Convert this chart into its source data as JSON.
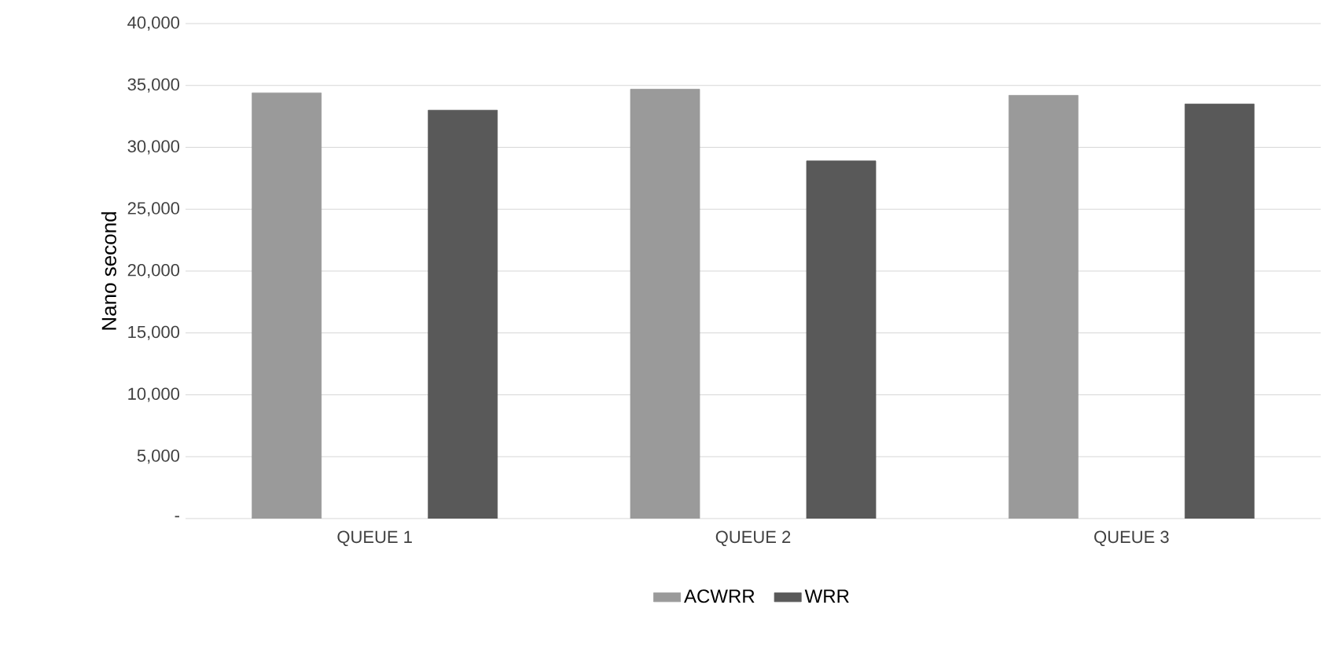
{
  "chart_data": {
    "type": "bar",
    "ylabel": "Nano second",
    "categories": [
      "QUEUE 1",
      "QUEUE 2",
      "QUEUE 3"
    ],
    "series": [
      {
        "name": "ACWRR",
        "color": "#9a9a9a",
        "values": [
          34400,
          34700,
          34200
        ]
      },
      {
        "name": "WRR",
        "color": "#595959",
        "values": [
          33000,
          28900,
          33500
        ]
      }
    ],
    "ylim": [
      0,
      40000
    ],
    "yticks": [
      {
        "value": 0,
        "label": "-"
      },
      {
        "value": 5000,
        "label": "5,000"
      },
      {
        "value": 10000,
        "label": "10,000"
      },
      {
        "value": 15000,
        "label": "15,000"
      },
      {
        "value": 20000,
        "label": "20,000"
      },
      {
        "value": 25000,
        "label": "25,000"
      },
      {
        "value": 30000,
        "label": "30,000"
      },
      {
        "value": 35000,
        "label": "35,000"
      },
      {
        "value": 40000,
        "label": "40,000"
      }
    ],
    "grid": "y",
    "legend": "bottom"
  }
}
